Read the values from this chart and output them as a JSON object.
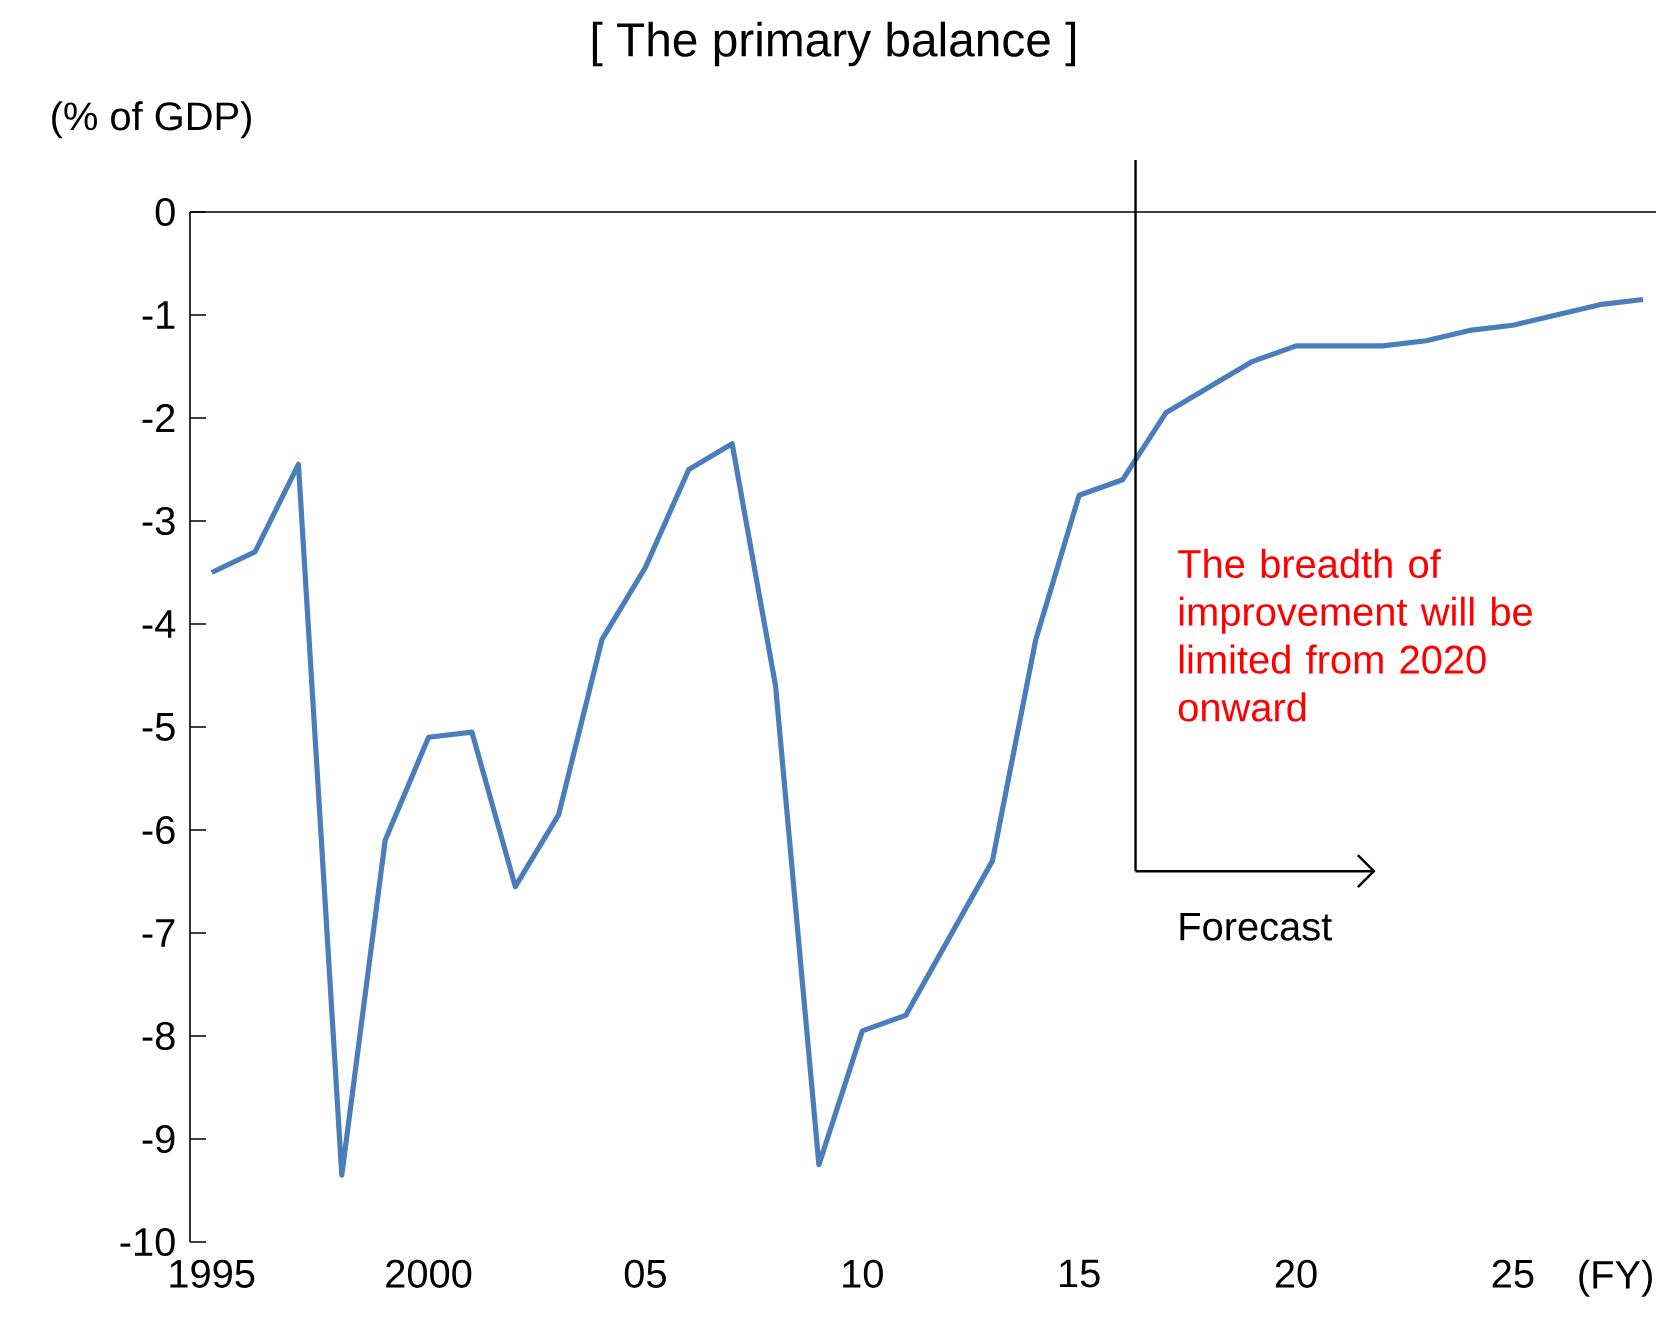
{
  "chart_data": {
    "type": "line",
    "title": "[ The primary balance ]",
    "ylabel": "(% of GDP)",
    "xlabel": "(FY)",
    "x": [
      1995,
      1996,
      1997,
      1998,
      1999,
      2000,
      2001,
      2002,
      2003,
      2004,
      2005,
      2006,
      2007,
      2008,
      2009,
      2010,
      2011,
      2012,
      2013,
      2014,
      2015,
      2016,
      2017,
      2018,
      2019,
      2020,
      2021,
      2022,
      2023,
      2024,
      2025,
      2026,
      2027,
      2028
    ],
    "series": [
      {
        "color": "#4a7ebb",
        "values": [
          -3.5,
          -3.3,
          -2.45,
          -9.35,
          -6.1,
          -5.1,
          -5.05,
          -6.55,
          -5.85,
          -4.15,
          -3.45,
          -2.5,
          -2.25,
          -4.6,
          -9.25,
          -7.95,
          -7.8,
          -7.05,
          -6.3,
          -4.15,
          -2.75,
          -2.6,
          -1.95,
          -1.7,
          -1.45,
          -1.3,
          -1.3,
          -1.3,
          -1.25,
          -1.15,
          -1.1,
          -1.0,
          -0.9,
          -0.85
        ]
      }
    ],
    "xlim": [
      1994.5,
      2028.3
    ],
    "ylim": [
      -10,
      0
    ],
    "xticks": [
      {
        "value": 1995,
        "label": "1995"
      },
      {
        "value": 2000,
        "label": "2000"
      },
      {
        "value": 2005,
        "label": "05"
      },
      {
        "value": 2010,
        "label": "10"
      },
      {
        "value": 2015,
        "label": "15"
      },
      {
        "value": 2020,
        "label": "20"
      },
      {
        "value": 2025,
        "label": "25"
      }
    ],
    "yticks": [
      0,
      -1,
      -2,
      -3,
      -4,
      -5,
      -6,
      -7,
      -8,
      -9,
      -10
    ],
    "ref_lines": [
      {
        "axis": "x",
        "value": 2016.3,
        "label": "Forecast",
        "color": "#000000"
      }
    ],
    "annotations": [
      "The breadth of improvement will be limited from 2020 onward"
    ],
    "marker": "none",
    "line_style": "solid"
  }
}
